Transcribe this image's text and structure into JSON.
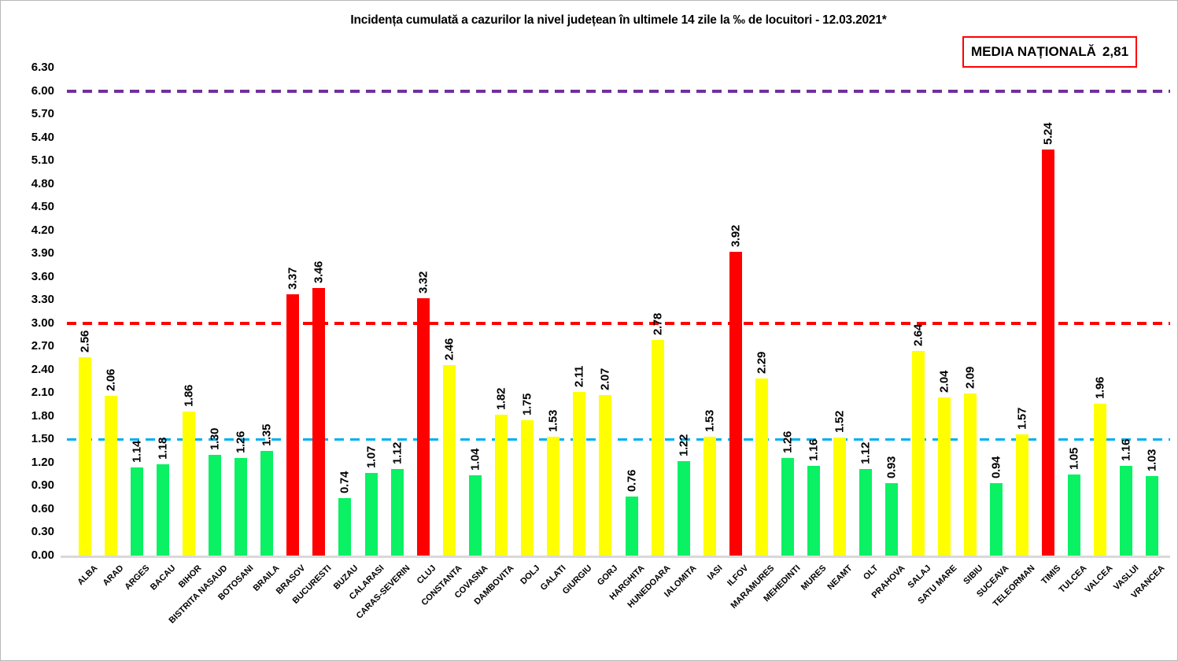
{
  "title": "Incidența cumulată a cazurilor la nivel județean în ultimele 14 zile la ‰ de locuitori - 12.03.2021*",
  "national_average": {
    "label": "MEDIA NAȚIONALĂ",
    "value": "2,81",
    "box_border_color": "#ff0000"
  },
  "chart_data": {
    "type": "bar",
    "title": "Incidența cumulată a cazurilor la nivel județean în ultimele 14 zile la ‰ de locuitori - 12.03.2021*",
    "xlabel": "",
    "ylabel": "",
    "ylim": [
      0,
      6.3
    ],
    "ytick_step": 0.3,
    "yticks": [
      "6.30",
      "6.00",
      "5.70",
      "5.40",
      "5.10",
      "4.80",
      "4.50",
      "4.20",
      "3.90",
      "3.60",
      "3.30",
      "3.00",
      "2.70",
      "2.40",
      "2.10",
      "1.80",
      "1.50",
      "1.20",
      "0.90",
      "0.60",
      "0.30",
      "0.00"
    ],
    "grid": false,
    "legend_position": "none",
    "categories": [
      "ALBA",
      "ARAD",
      "ARGES",
      "BACAU",
      "BIHOR",
      "BISTRITA NASAUD",
      "BOTOSANI",
      "BRAILA",
      "BRASOV",
      "BUCURESTI",
      "BUZAU",
      "CALARASI",
      "CARAS-SEVERIN",
      "CLUJ",
      "CONSTANTA",
      "COVASNA",
      "DAMBOVITA",
      "DOLJ",
      "GALATI",
      "GIURGIU",
      "GORJ",
      "HARGHITA",
      "HUNEDOARA",
      "IALOMITA",
      "IASI",
      "ILFOV",
      "MARAMURES",
      "MEHEDINTI",
      "MURES",
      "NEAMT",
      "OLT",
      "PRAHOVA",
      "SALAJ",
      "SATU MARE",
      "SIBIU",
      "SUCEAVA",
      "TELEORMAN",
      "TIMIS",
      "TULCEA",
      "VALCEA",
      "VASLUI",
      "VRANCEA"
    ],
    "values": [
      2.56,
      2.06,
      1.14,
      1.18,
      1.86,
      1.3,
      1.26,
      1.35,
      3.37,
      3.46,
      0.74,
      1.07,
      1.12,
      3.32,
      2.46,
      1.04,
      1.82,
      1.75,
      1.53,
      2.11,
      2.07,
      0.76,
      2.78,
      1.22,
      1.53,
      3.92,
      2.29,
      1.26,
      1.16,
      1.52,
      1.12,
      0.93,
      2.64,
      2.04,
      2.09,
      0.94,
      1.57,
      5.24,
      1.05,
      1.96,
      1.16,
      1.03
    ],
    "bar_colors": [
      "yellow",
      "yellow",
      "green",
      "green",
      "yellow",
      "green",
      "green",
      "green",
      "red",
      "red",
      "green",
      "green",
      "green",
      "red",
      "yellow",
      "green",
      "yellow",
      "yellow",
      "yellow",
      "yellow",
      "yellow",
      "green",
      "yellow",
      "green",
      "yellow",
      "red",
      "yellow",
      "green",
      "green",
      "yellow",
      "green",
      "green",
      "yellow",
      "yellow",
      "yellow",
      "green",
      "yellow",
      "red",
      "green",
      "yellow",
      "green",
      "green"
    ],
    "palette": {
      "red": "#ff0000",
      "yellow": "#ffff00",
      "green": "#0af164"
    },
    "reference_lines": [
      {
        "name": "threshold-6",
        "value": 6.0,
        "color": "#7030a0",
        "style": "dashed",
        "thickness": 4
      },
      {
        "name": "threshold-3",
        "value": 3.0,
        "color": "#ff0000",
        "style": "dashed",
        "thickness": 4
      },
      {
        "name": "threshold-1-5",
        "value": 1.5,
        "color": "#00b0f0",
        "style": "dashed",
        "thickness": 3
      }
    ],
    "axis_line_color": "#d9d9d9"
  }
}
